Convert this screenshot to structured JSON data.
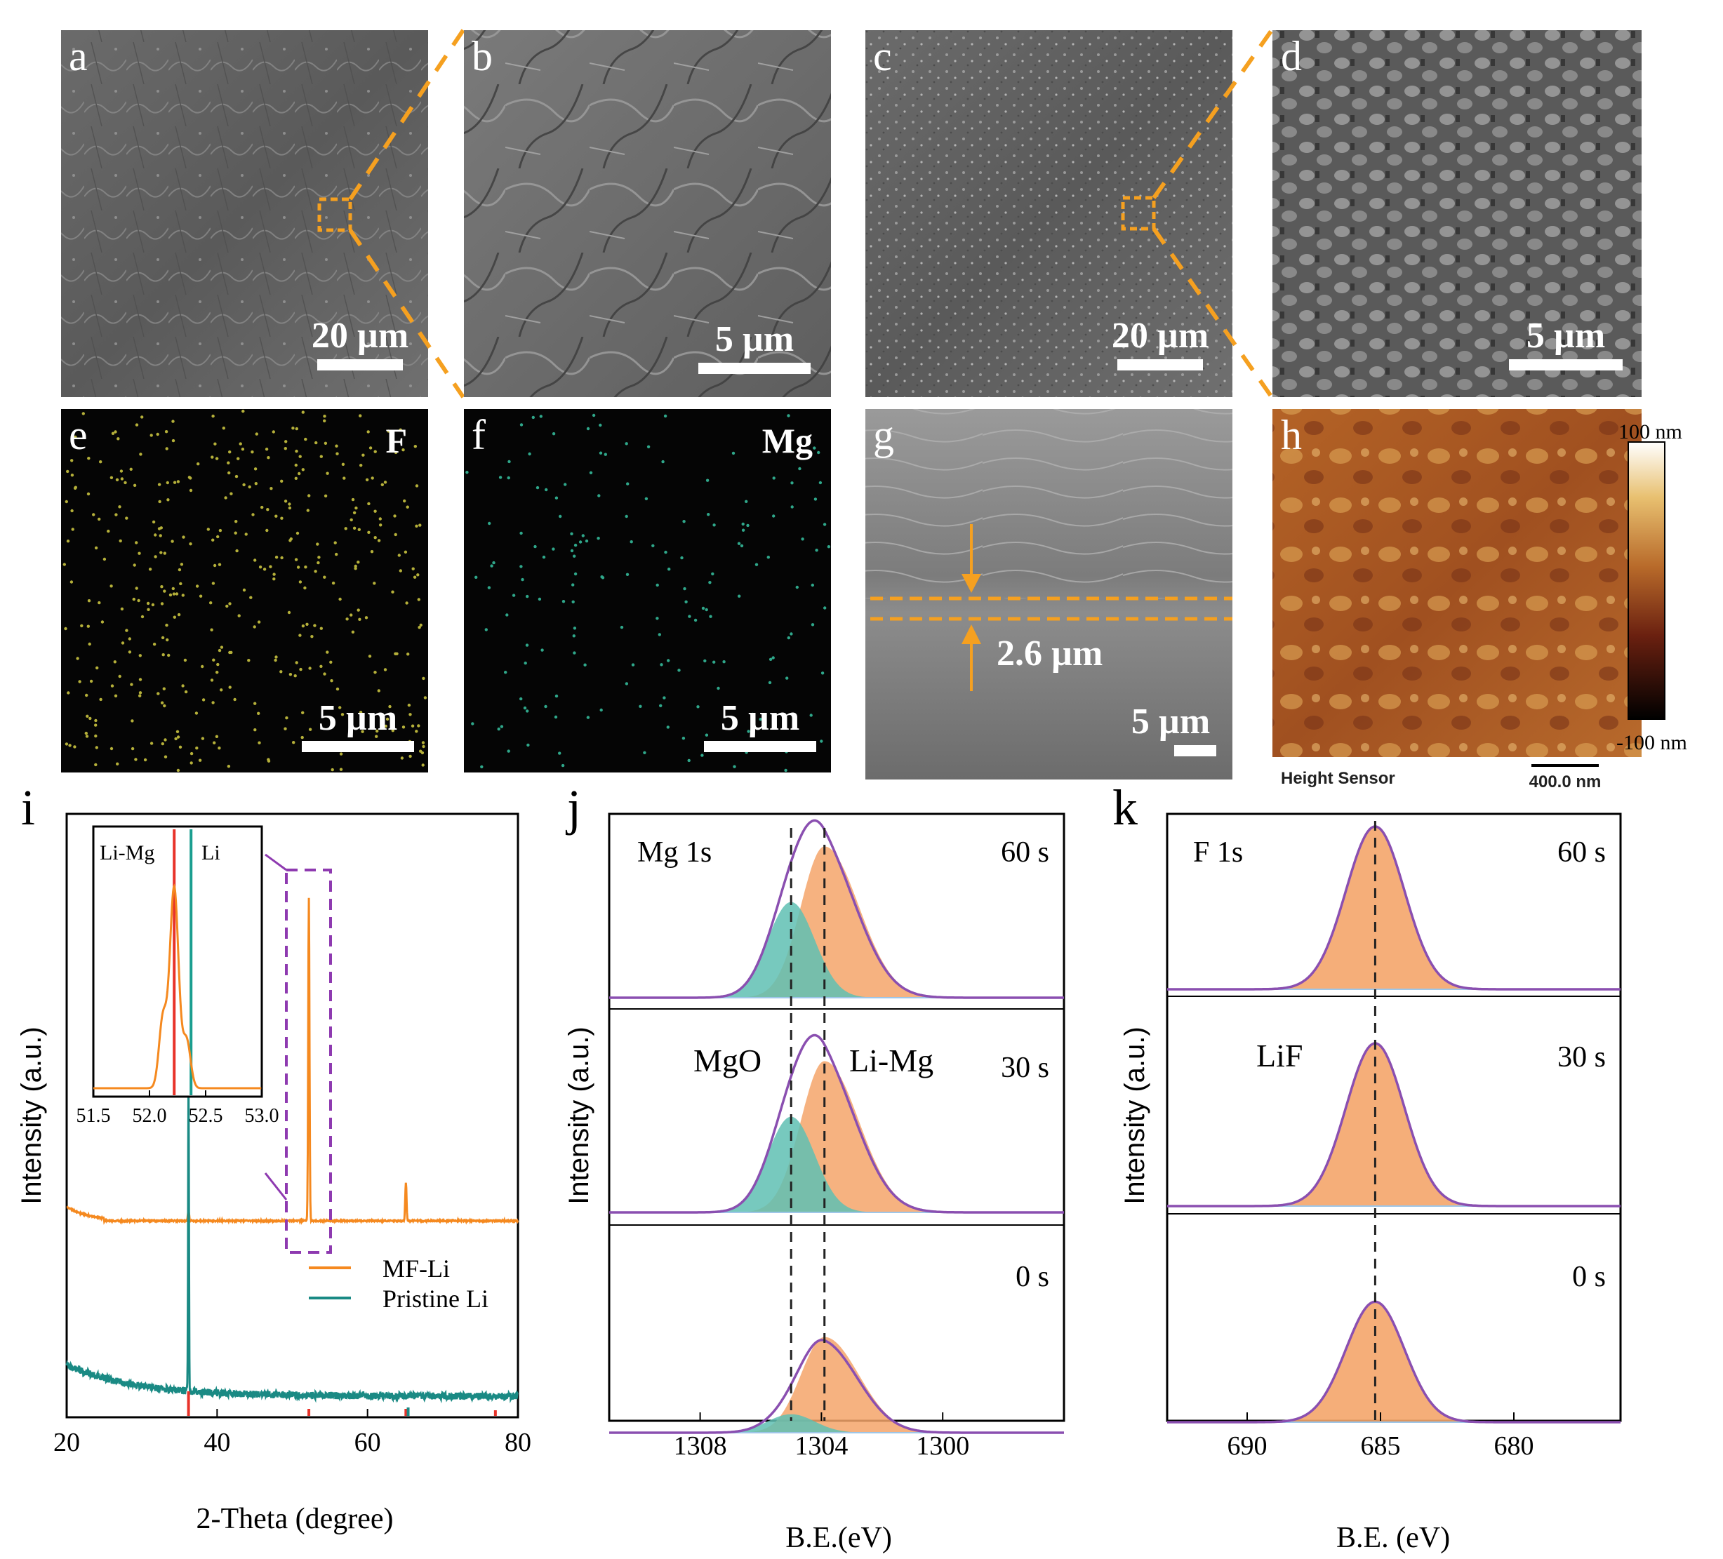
{
  "panels": {
    "a": {
      "letter": "a",
      "scale": "20 µm"
    },
    "b": {
      "letter": "b",
      "scale": "5 µm"
    },
    "c": {
      "letter": "c",
      "scale": "20 µm"
    },
    "d": {
      "letter": "d",
      "scale": "5 µm"
    },
    "e": {
      "letter": "e",
      "element": "F",
      "scale": "5 µm"
    },
    "f": {
      "letter": "f",
      "element": "Mg",
      "scale": "5 µm"
    },
    "g": {
      "letter": "g",
      "thickness": "2.6 µm",
      "scale": "5 µm"
    },
    "h": {
      "letter": "h",
      "colorbar_max": "100 nm",
      "colorbar_min": "-100 nm",
      "sensor_label": "Height Sensor",
      "scale": "400.0 nm"
    }
  },
  "chart_data": [
    {
      "panel": "i",
      "type": "line",
      "xlabel": "2-Theta (degree)",
      "ylabel": "Intensity (a.u.)",
      "xlim": [
        20,
        80
      ],
      "xticks": [
        "20",
        "40",
        "60",
        "80"
      ],
      "series": [
        {
          "name": "MF-Li",
          "color": "#f5891f",
          "peaks": [
            [
              36.2,
              0.03
            ],
            [
              52.2,
              1.0
            ],
            [
              65.1,
              0.12
            ]
          ]
        },
        {
          "name": "Pristine Li",
          "color": "#1a8a84",
          "peaks": [
            [
              36.2,
              1.0
            ]
          ]
        }
      ],
      "inset": {
        "xlim": [
          51.5,
          53.0
        ],
        "xticks": [
          "51.5",
          "52.0",
          "52.5",
          "53.0"
        ],
        "labels": [
          "Li-Mg",
          "Li"
        ],
        "ref_lines": [
          {
            "x": 52.22,
            "color": "#e8332a"
          },
          {
            "x": 52.37,
            "color": "#1a9e8f"
          }
        ]
      }
    },
    {
      "panel": "j",
      "type": "line",
      "title": "Mg 1s",
      "xlabel": "B.E.(eV)",
      "ylabel": "Intensity (a.u.)",
      "xlim": [
        1311,
        1296
      ],
      "xticks": [
        "1308",
        "1304",
        "1300"
      ],
      "peak_positions": [
        1305.0,
        1303.9
      ],
      "components": [
        "MgO",
        "Li-Mg"
      ],
      "spectra": [
        {
          "label": "60 s",
          "mgo": 0.62,
          "limg": 0.98
        },
        {
          "label": "30 s",
          "mgo": 0.62,
          "limg": 0.98
        },
        {
          "label": "0 s",
          "mgo": 0.12,
          "limg": 0.62
        }
      ]
    },
    {
      "panel": "k",
      "type": "line",
      "title": "F 1s",
      "xlabel": "B.E. (eV)",
      "ylabel": "Intensity (a.u.)",
      "xlim": [
        693,
        676
      ],
      "xticks": [
        "690",
        "685",
        "680"
      ],
      "peak_position": 685.2,
      "components": [
        "LiF"
      ],
      "spectra": [
        {
          "label": "60 s",
          "height": 1.0
        },
        {
          "label": "30 s",
          "height": 1.0
        },
        {
          "label": "0 s",
          "height": 0.74
        }
      ]
    }
  ],
  "panel_letters": {
    "i": "i",
    "j": "j",
    "k": "k"
  }
}
